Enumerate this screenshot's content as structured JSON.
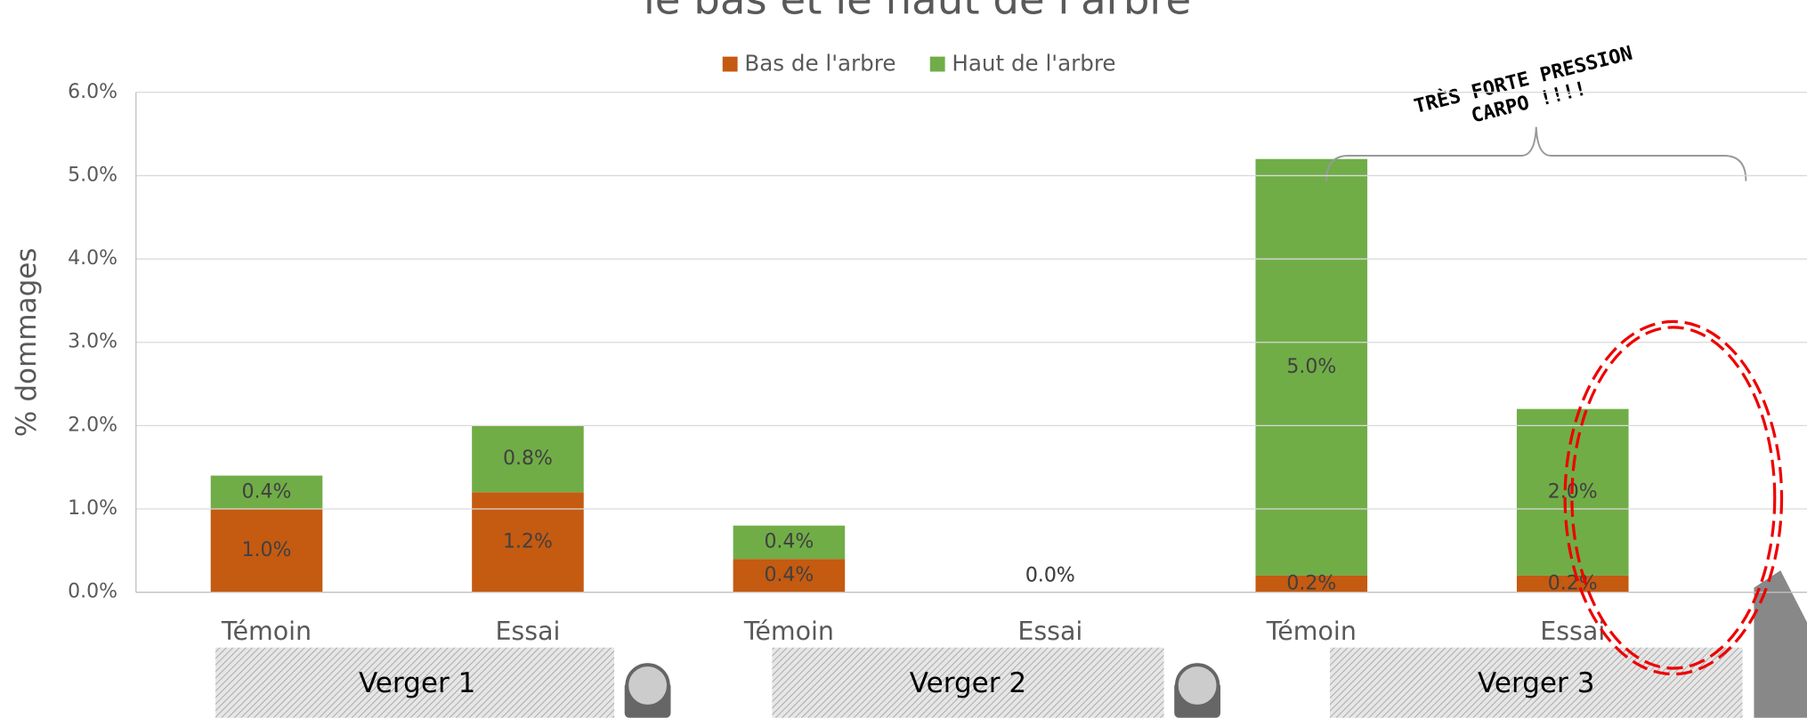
{
  "chart_data": {
    "type": "bar",
    "stacked": true,
    "title": "le bas et le haut de l'arbre",
    "y_label": "% dommages",
    "categories": [
      "Témoin",
      "Essai",
      "Témoin",
      "Essai",
      "Témoin",
      "Essai"
    ],
    "groups": [
      "Verger 1",
      "Verger 2",
      "Verger 3"
    ],
    "series": [
      {
        "name": "Bas de l'arbre",
        "color": "#c55a11",
        "values": [
          1.0,
          1.2,
          0.4,
          0.0,
          0.2,
          0.2
        ],
        "value_labels": [
          "1.0%",
          "1.2%",
          "0.4%",
          "0.0%",
          "0.2%",
          "0.2%"
        ]
      },
      {
        "name": "Haut de l'arbre",
        "color": "#70ad47",
        "values": [
          0.4,
          0.8,
          0.4,
          0.0,
          5.0,
          2.0
        ],
        "value_labels": [
          "0.4%",
          "0.8%",
          "0.4%",
          "0.0%",
          "5.0%",
          "2.0%"
        ]
      }
    ],
    "ylim": [
      0,
      6
    ],
    "yticks": [
      {
        "value": 0,
        "label": "0.0%"
      },
      {
        "value": 1,
        "label": "1.0%"
      },
      {
        "value": 2,
        "label": "2.0%"
      },
      {
        "value": 3,
        "label": "3.0%"
      },
      {
        "value": 4,
        "label": "4.0%"
      },
      {
        "value": 5,
        "label": "5.0%"
      },
      {
        "value": 6,
        "label": "6.0%"
      }
    ],
    "grid": true,
    "legend": "top",
    "annotations": [
      "TRÈS FORTE PRESSION",
      "CARPO !!!!"
    ]
  }
}
